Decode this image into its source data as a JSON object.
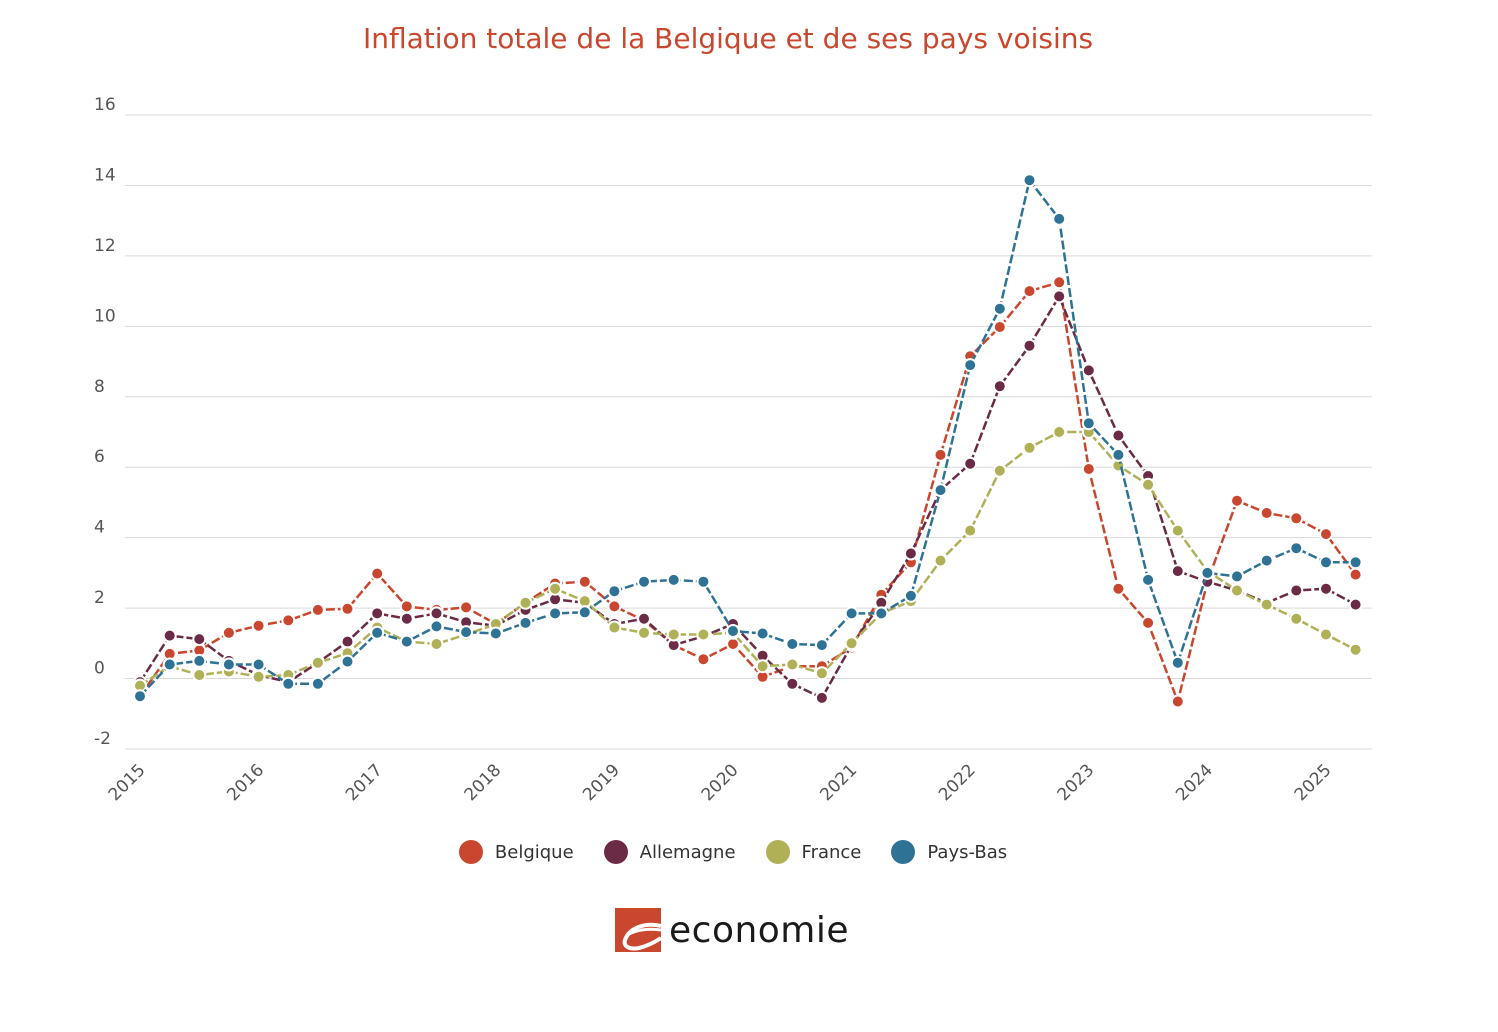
{
  "chart_data": {
    "type": "line",
    "title": "Inflation totale de la Belgique et de ses pays voisins",
    "xlabel": "",
    "ylabel": "",
    "ylim": [
      -2,
      16
    ],
    "yticks": [
      "16",
      "14",
      "12",
      "10",
      "8",
      "6",
      "4",
      "2",
      "0",
      "-2"
    ],
    "ytick_values": [
      16,
      14,
      12,
      10,
      8,
      6,
      4,
      2,
      0,
      -2
    ],
    "xticks": [
      "2015",
      "2016",
      "2017",
      "2018",
      "2019",
      "2020",
      "2021",
      "2022",
      "2023",
      "2024",
      "2025"
    ],
    "x_start": "2015-Q1",
    "points_per_year": 4,
    "grid": true,
    "legend_position": "bottom",
    "series": [
      {
        "name": "Belgique",
        "color": "#c9472e",
        "values": [
          -0.5,
          0.7,
          0.8,
          1.3,
          1.5,
          1.65,
          1.95,
          1.98,
          2.98,
          2.05,
          1.95,
          2.02,
          1.55,
          2.15,
          2.7,
          2.75,
          2.05,
          1.65,
          0.95,
          0.55,
          0.98,
          0.05,
          0.35,
          0.35,
          0.88,
          2.38,
          3.3,
          6.35,
          9.15,
          9.98,
          11.0,
          11.25,
          5.95,
          2.55,
          1.58,
          -0.65,
          2.75,
          5.05,
          4.7,
          4.55,
          4.1,
          2.95
        ]
      },
      {
        "name": "Allemagne",
        "color": "#6b2a45",
        "values": [
          -0.1,
          1.22,
          1.12,
          0.5,
          0.1,
          -0.1,
          0.45,
          1.05,
          1.85,
          1.7,
          1.85,
          1.6,
          1.5,
          1.95,
          2.25,
          2.15,
          1.55,
          1.7,
          0.95,
          1.2,
          1.55,
          0.65,
          -0.15,
          -0.55,
          0.95,
          2.15,
          3.55,
          5.35,
          6.1,
          8.3,
          9.45,
          10.85,
          8.75,
          6.9,
          5.75,
          3.05,
          2.75,
          2.5,
          2.15,
          2.5,
          2.55,
          2.1
        ]
      },
      {
        "name": "France",
        "color": "#b0b057",
        "values": [
          -0.2,
          0.35,
          0.1,
          0.2,
          0.05,
          0.1,
          0.45,
          0.72,
          1.45,
          1.05,
          0.98,
          1.25,
          1.55,
          2.15,
          2.55,
          2.2,
          1.45,
          1.3,
          1.25,
          1.25,
          1.3,
          0.35,
          0.4,
          0.15,
          1.0,
          1.85,
          2.2,
          3.35,
          4.2,
          5.9,
          6.55,
          7.0,
          7.0,
          6.05,
          5.5,
          4.2,
          3.05,
          2.5,
          2.1,
          1.7,
          1.25,
          0.82
        ]
      },
      {
        "name": "Pays-Bas",
        "color": "#2e7396",
        "values": [
          -0.5,
          0.4,
          0.5,
          0.4,
          0.4,
          -0.15,
          -0.15,
          0.48,
          1.3,
          1.05,
          1.48,
          1.32,
          1.28,
          1.58,
          1.85,
          1.88,
          2.48,
          2.75,
          2.8,
          2.75,
          1.35,
          1.28,
          0.98,
          0.95,
          1.85,
          1.85,
          2.35,
          5.35,
          8.9,
          10.5,
          14.15,
          13.05,
          7.25,
          6.35,
          2.8,
          0.45,
          3.0,
          2.9,
          3.35,
          3.7,
          3.3,
          3.3
        ]
      }
    ]
  },
  "branding": {
    "logo_text": "economie",
    "logo_color": "#c9472e"
  }
}
